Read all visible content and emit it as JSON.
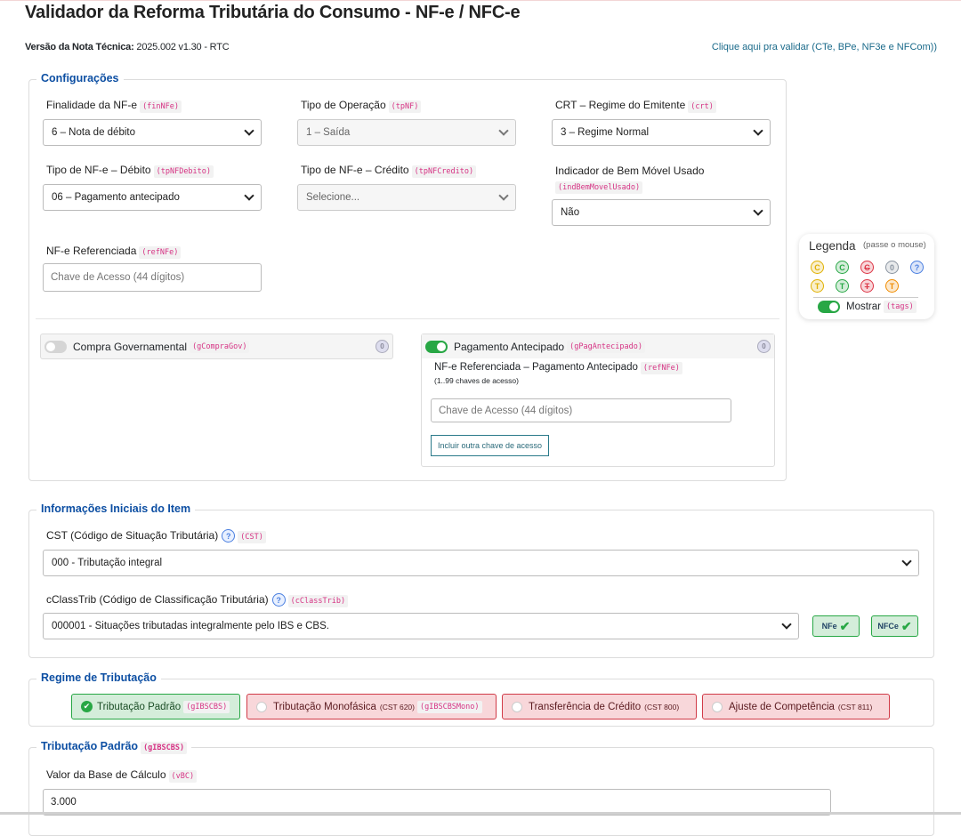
{
  "title": "Validador da Reforma Tributária do Consumo - NF-e / NFC-e",
  "version_label": "Versão da Nota Técnica:",
  "version_value": "2025.002 v1.30 - RTC",
  "validate_link": "Clique aqui pra validar (CTe, BPe, NF3e e NFCom))",
  "config": {
    "legend": "Configurações",
    "finNFe": {
      "label": "Finalidade da NF-e",
      "tag": "(finNFe)",
      "value": "6 – Nota de débito"
    },
    "tpNF": {
      "label": "Tipo de Operação",
      "tag": "(tpNF)",
      "value": "1 – Saída"
    },
    "crt": {
      "label": "CRT – Regime do Emitente",
      "tag": "(crt)",
      "value": "3 – Regime Normal"
    },
    "tpNFDebito": {
      "label": "Tipo de NF-e – Débito",
      "tag": "(tpNFDebito)",
      "value": "06 – Pagamento antecipado"
    },
    "tpNFCredito": {
      "label": "Tipo de NF-e – Crédito",
      "tag": "(tpNFCredito)",
      "value": "Selecione..."
    },
    "indBem": {
      "label": "Indicador de Bem Móvel Usado",
      "tag": "(indBemMovelUsado)",
      "value": "Não"
    },
    "refNFe": {
      "label": "NF-e Referenciada",
      "tag": "(refNFe)",
      "placeholder": "Chave de Acesso (44 dígitos)"
    },
    "compraGov": {
      "label": "Compra Governamental",
      "tag": "(gCompraGov)",
      "enabled": false,
      "count": "0"
    },
    "pagAnt": {
      "label": "Pagamento Antecipado",
      "tag": "(gPagAntecipado)",
      "enabled": true,
      "count": "0",
      "ref_label": "NF-e Referenciada – Pagamento Antecipado",
      "ref_tag": "(refNFe)",
      "ref_hint": "(1..99 chaves de acesso)",
      "placeholder": "Chave de Acesso (44 dígitos)",
      "add_button": "Incluir outra chave de acesso"
    }
  },
  "legenda": {
    "title": "Legenda",
    "hint": "(passe o mouse)",
    "icons": [
      {
        "name": "c-yellow",
        "letter": "C",
        "color": "#e0b000"
      },
      {
        "name": "c-green",
        "letter": "C",
        "color": "#28a745"
      },
      {
        "name": "c-red-struck",
        "letter": "C",
        "color": "#dc3545"
      },
      {
        "name": "zero-grey",
        "letter": "0",
        "color": "#8a94a0"
      },
      {
        "name": "question-blue",
        "letter": "?",
        "color": "#4a7fe0"
      },
      {
        "name": "t-yellow",
        "letter": "T",
        "color": "#e0b000"
      },
      {
        "name": "t-green",
        "letter": "T",
        "color": "#28a745"
      },
      {
        "name": "t-red-struck",
        "letter": "T",
        "color": "#dc3545"
      },
      {
        "name": "t-orange",
        "letter": "T",
        "color": "#f08c00"
      }
    ],
    "toggle_label": "Mostrar",
    "toggle_tag": "(tags)",
    "toggle_on": true
  },
  "item": {
    "legend": "Informações Iniciais do Item",
    "cst": {
      "label": "CST (Código de Situação Tributária)",
      "tag": "(CST)",
      "value": "000 - Tributação integral"
    },
    "cclass": {
      "label": "cClassTrib (Código de Classificação Tributária)",
      "tag": "(cClassTrib)",
      "value": "000001 - Situações tributadas integralmente pelo IBS e CBS."
    },
    "badges": [
      "NFe",
      "NFCe"
    ]
  },
  "regime": {
    "legend": "Regime de Tributação",
    "options": [
      {
        "label": "Tributação Padrão",
        "tag": "(gIBSCBS)",
        "selected": true
      },
      {
        "label": "Tributação Monofásica",
        "cst": "(CST 620)",
        "tag": "(gIBSCBSMono)",
        "selected": false
      },
      {
        "label": "Transferência de Crédito",
        "cst": "(CST 800)",
        "selected": false
      },
      {
        "label": "Ajuste de Competência",
        "cst": "(CST 811)",
        "selected": false
      }
    ]
  },
  "padrao": {
    "legend": "Tributação Padrão",
    "tag": "(gIBSCBS)",
    "vbc_label": "Valor da Base de Cálculo",
    "vbc_tag": "(vBC)",
    "vbc_value": "3.000"
  }
}
